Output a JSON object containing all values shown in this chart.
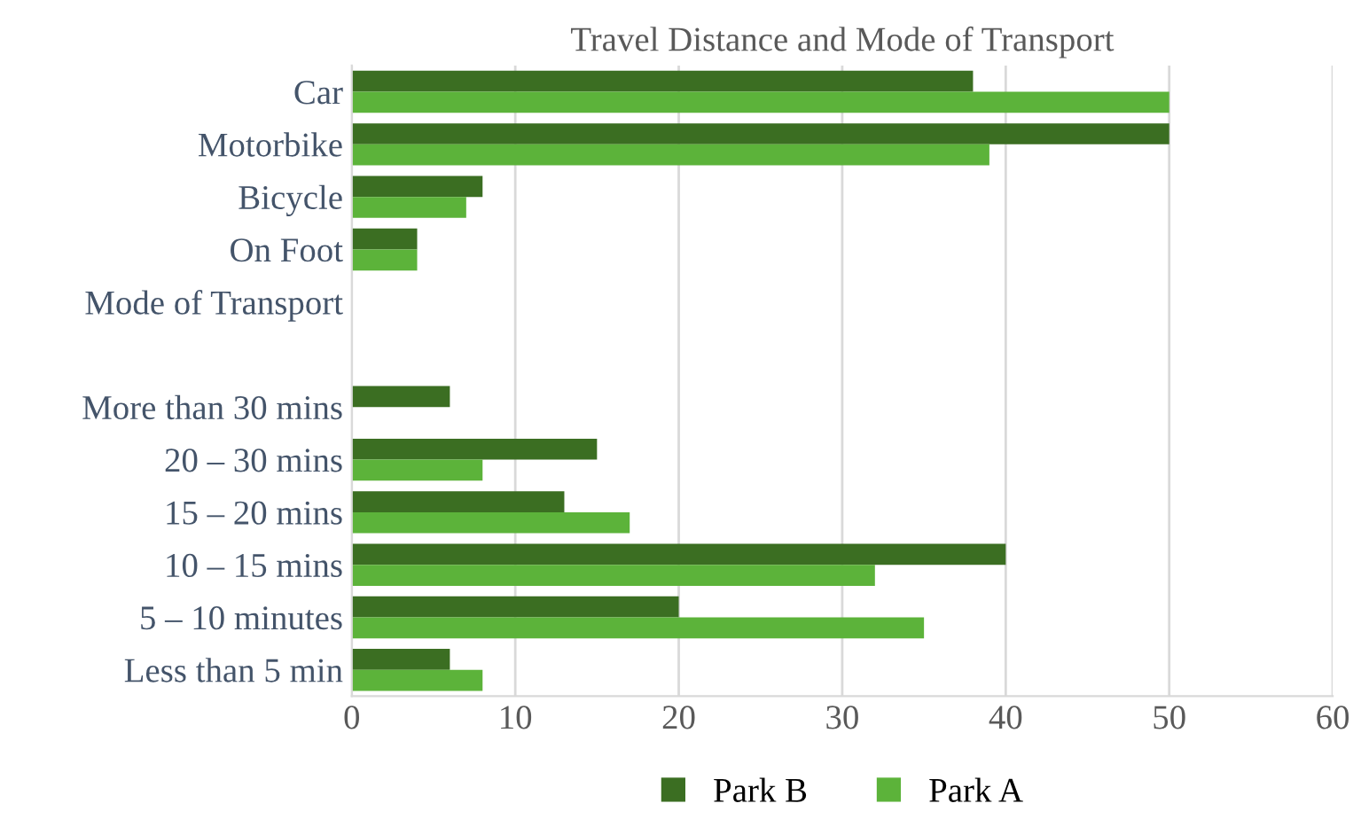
{
  "chart_data": {
    "type": "bar",
    "orientation": "horizontal",
    "title": "Travel Distance and Mode of Transport",
    "categories": [
      "Car",
      "Motorbike",
      "Bicycle",
      "On Foot",
      "Mode of Transport",
      null,
      "More than 30 mins",
      "20 – 30 mins",
      "15 – 20 mins",
      "10 – 15 mins",
      "5 – 10 minutes",
      "Less than 5 min"
    ],
    "series": [
      {
        "name": "Park B",
        "color": "#3b6e22",
        "values": [
          38,
          50,
          8,
          4,
          null,
          null,
          6,
          15,
          13,
          40,
          20,
          6
        ]
      },
      {
        "name": "Park A",
        "color": "#5cb33a",
        "values": [
          50,
          39,
          7,
          4,
          null,
          null,
          null,
          8,
          17,
          32,
          35,
          8
        ]
      }
    ],
    "xlim": [
      0,
      60
    ],
    "xticks": [
      0,
      10,
      20,
      30,
      40,
      50,
      60
    ],
    "grid": "x",
    "legend": "bottom"
  }
}
